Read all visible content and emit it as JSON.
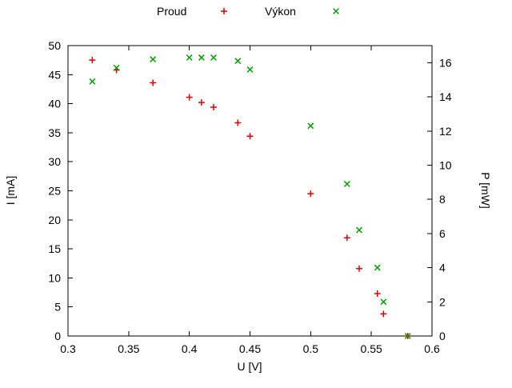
{
  "chart_data": {
    "type": "scatter",
    "title": "",
    "xlabel": "U [V]",
    "ylabel_left": "I [mA]",
    "ylabel_right": "P [mW]",
    "xlim": [
      0.3,
      0.6
    ],
    "ylim_left": [
      0,
      50
    ],
    "ylim_right": [
      0,
      17
    ],
    "grid": false,
    "legend_position": "top-center",
    "xticks": {
      "values": [
        0.3,
        0.35,
        0.4,
        0.45,
        0.5,
        0.55,
        0.6
      ],
      "labels": [
        "0.3",
        "0.35",
        "0.4",
        "0.45",
        "0.5",
        "0.55",
        "0.6"
      ]
    },
    "yticks_left": {
      "values": [
        0,
        5,
        10,
        15,
        20,
        25,
        30,
        35,
        40,
        45,
        50
      ],
      "labels": [
        "0",
        "5",
        "10",
        "15",
        "20",
        "25",
        "30",
        "35",
        "40",
        "45",
        "50"
      ]
    },
    "yticks_right": {
      "values": [
        0,
        2,
        4,
        6,
        8,
        10,
        12,
        14,
        16
      ],
      "labels": [
        "0",
        "2",
        "4",
        "6",
        "8",
        "10",
        "12",
        "14",
        "16"
      ]
    },
    "series": [
      {
        "name": "Proud",
        "axis": "left",
        "marker": "plus",
        "color": "#e00000",
        "x": [
          0.32,
          0.34,
          0.37,
          0.4,
          0.41,
          0.42,
          0.44,
          0.45,
          0.5,
          0.53,
          0.54,
          0.555,
          0.56,
          0.58
        ],
        "y": [
          47.5,
          45.8,
          43.6,
          41.1,
          40.2,
          39.4,
          36.7,
          34.4,
          24.5,
          16.9,
          11.6,
          7.3,
          3.8,
          0.0
        ]
      },
      {
        "name": "Výkon",
        "axis": "right",
        "marker": "cross",
        "color": "#00a000",
        "x": [
          0.32,
          0.34,
          0.37,
          0.4,
          0.41,
          0.42,
          0.44,
          0.45,
          0.5,
          0.53,
          0.54,
          0.555,
          0.56,
          0.58
        ],
        "y": [
          14.9,
          15.7,
          16.2,
          16.3,
          16.3,
          16.3,
          16.1,
          15.6,
          12.3,
          8.9,
          6.2,
          4.0,
          2.0,
          0.0
        ]
      }
    ]
  }
}
